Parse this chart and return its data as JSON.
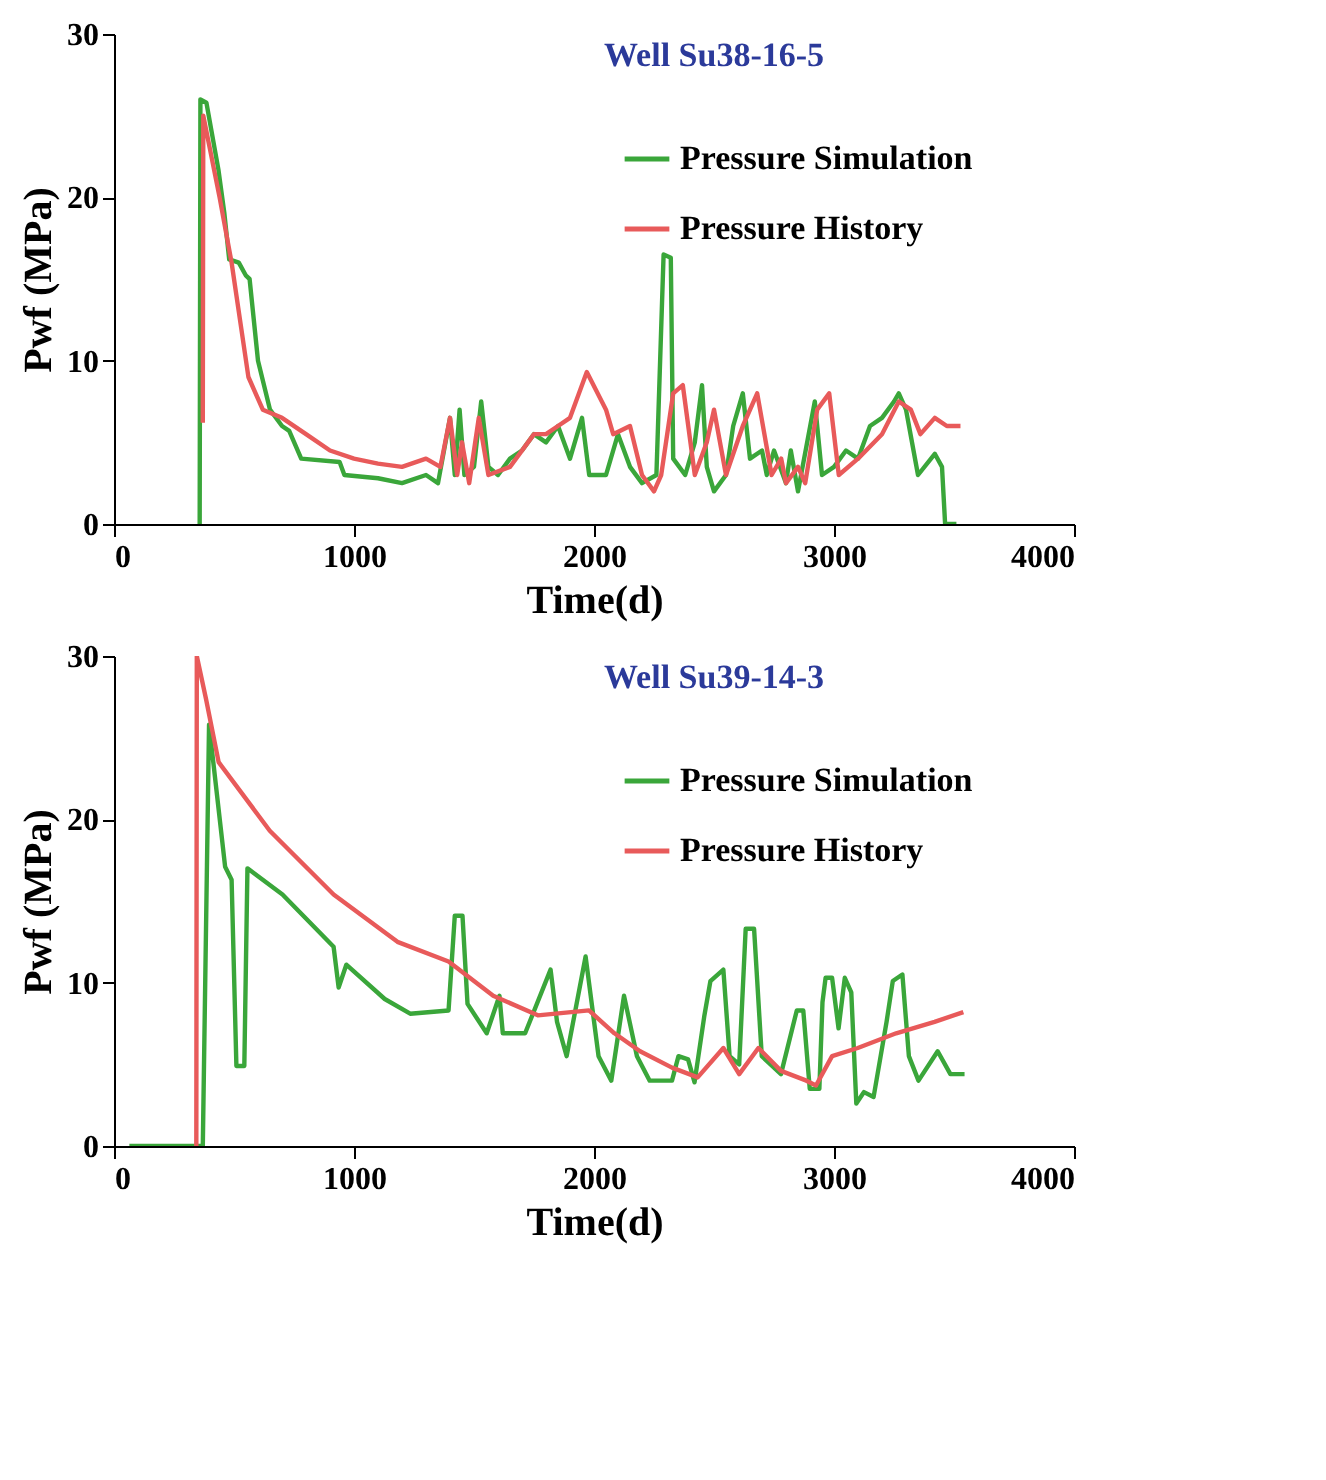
{
  "chart_data": [
    {
      "type": "line",
      "title": "Well Su38-16-5",
      "xlabel": "Time(d)",
      "ylabel": "Pwf (MPa)",
      "xlim": [
        0,
        4000
      ],
      "xticks": [
        0,
        1000,
        2000,
        3000,
        4000
      ],
      "ylim": [
        0,
        30
      ],
      "yticks": [
        0,
        10,
        20,
        30
      ],
      "legend": "top right",
      "grid": false,
      "series": [
        {
          "name": "Pressure Simulation",
          "color": "#3aa63a",
          "x": [
            357,
            360,
            385,
            435,
            460,
            480,
            520,
            550,
            565,
            600,
            650,
            700,
            730,
            780,
            940,
            960,
            1100,
            1200,
            1300,
            1350,
            1400,
            1420,
            1440,
            1460,
            1500,
            1530,
            1560,
            1600,
            1650,
            1700,
            1750,
            1800,
            1850,
            1900,
            1950,
            1980,
            2050,
            2100,
            2150,
            2200,
            2260,
            2290,
            2320,
            2330,
            2380,
            2420,
            2450,
            2470,
            2500,
            2550,
            2580,
            2620,
            2650,
            2700,
            2720,
            2750,
            2800,
            2820,
            2850,
            2920,
            2950,
            3000,
            3050,
            3100,
            3150,
            3200,
            3250,
            3270,
            3300,
            3350,
            3420,
            3450,
            3463,
            3510
          ],
          "values": [
            0,
            26,
            25.8,
            21.7,
            19,
            16.2,
            16,
            15.2,
            15,
            10,
            7,
            6,
            5.7,
            4,
            3.8,
            3,
            2.8,
            2.5,
            3,
            2.5,
            6.5,
            3,
            7,
            3,
            3.5,
            7.5,
            3.5,
            3,
            4,
            4.5,
            5.5,
            5,
            6,
            4,
            6.5,
            3,
            3,
            5.5,
            3.5,
            2.5,
            3,
            16.5,
            16.3,
            4,
            3,
            5,
            8.5,
            3.5,
            2,
            3,
            6,
            8,
            4,
            4.5,
            3,
            4.5,
            2.5,
            4.5,
            2,
            7.5,
            3,
            3.5,
            4.5,
            4,
            6,
            6.5,
            7.5,
            8,
            7,
            3,
            4.3,
            3.5,
            0,
            0
          ]
        },
        {
          "name": "Pressure History",
          "color": "#e85a5a",
          "x": [
            370,
            372,
            440,
            490,
            530,
            560,
            620,
            700,
            800,
            900,
            1000,
            1100,
            1200,
            1300,
            1360,
            1400,
            1430,
            1450,
            1480,
            1520,
            1560,
            1650,
            1750,
            1800,
            1850,
            1900,
            1970,
            2050,
            2080,
            2150,
            2200,
            2250,
            2280,
            2330,
            2370,
            2420,
            2470,
            2500,
            2550,
            2620,
            2680,
            2740,
            2780,
            2800,
            2850,
            2880,
            2930,
            2980,
            3020,
            3100,
            3200,
            3270,
            3320,
            3360,
            3420,
            3470,
            3527
          ],
          "values": [
            6.2,
            25,
            20,
            16,
            12,
            9,
            7,
            6.5,
            5.5,
            4.5,
            4,
            3.7,
            3.5,
            4,
            3.5,
            6.5,
            3,
            5,
            2.5,
            6.5,
            3,
            3.5,
            5.5,
            5.5,
            6,
            6.5,
            9.3,
            7,
            5.5,
            6,
            3,
            2,
            3,
            8,
            8.5,
            3,
            5,
            7,
            3,
            6,
            8,
            3,
            4,
            2.5,
            3.5,
            2.5,
            7,
            8,
            3,
            4,
            5.5,
            7.5,
            7,
            5.5,
            6.5,
            6,
            6
          ]
        }
      ]
    },
    {
      "type": "line",
      "title": "Well Su39-14-3",
      "xlabel": "Time(d)",
      "ylabel": "Pwf (MPa)",
      "xlim": [
        0,
        4000
      ],
      "xticks": [
        0,
        1000,
        2000,
        3000,
        4000
      ],
      "ylim": [
        0,
        30
      ],
      "yticks": [
        0,
        10,
        20,
        30
      ],
      "legend": "top right",
      "grid": false,
      "series": [
        {
          "name": "Pressure Simulation",
          "color": "#3aa63a",
          "x": [
            64,
            370,
            396,
            463,
            490,
            510,
            543,
            556,
            702,
            915,
            936,
            968,
            1128,
            1234,
            1394,
            1420,
            1452,
            1473,
            1553,
            1606,
            1620,
            1713,
            1819,
            1846,
            1886,
            1965,
            2019,
            2072,
            2125,
            2179,
            2232,
            2325,
            2352,
            2392,
            2419,
            2459,
            2485,
            2539,
            2565,
            2605,
            2632,
            2667,
            2699,
            2779,
            2845,
            2872,
            2899,
            2939,
            2952,
            2965,
            2992,
            3019,
            3045,
            3072,
            3093,
            3125,
            3165,
            3219,
            3245,
            3285,
            3312,
            3352,
            3432,
            3485,
            3544
          ],
          "values": [
            0,
            0,
            25.8,
            17.1,
            16.3,
            4.9,
            4.9,
            17,
            15.4,
            12.2,
            9.7,
            11.1,
            9,
            8.1,
            8.3,
            14.1,
            14.1,
            8.7,
            6.9,
            9.2,
            6.9,
            6.9,
            10.8,
            7.6,
            5.5,
            11.6,
            5.5,
            4,
            9.2,
            5.5,
            4,
            4,
            5.5,
            5.3,
            3.9,
            7.9,
            10.1,
            10.8,
            5.5,
            5,
            13.3,
            13.3,
            5.5,
            4.4,
            8.3,
            8.3,
            3.5,
            3.5,
            8.8,
            10.3,
            10.3,
            7.2,
            10.3,
            9.4,
            2.6,
            3.3,
            3,
            7.6,
            10.1,
            10.5,
            5.5,
            4,
            5.8,
            4.4,
            4.4
          ]
        },
        {
          "name": "Pressure History",
          "color": "#e85a5a",
          "x": [
            343,
            345,
            383,
            436,
            649,
            915,
            1181,
            1394,
            1580,
            1766,
            1979,
            2085,
            2192,
            2325,
            2432,
            2539,
            2605,
            2685,
            2779,
            2885,
            2925,
            2992,
            3099,
            3259,
            3419,
            3539
          ],
          "values": [
            0,
            30,
            27.4,
            23.5,
            19.3,
            15.4,
            12.5,
            11.3,
            9.2,
            8,
            8.3,
            6.9,
            5.8,
            4.8,
            4.2,
            6,
            4.4,
            6,
            4.6,
            4,
            3.7,
            5.5,
            6,
            6.9,
            7.6,
            8.2
          ]
        }
      ]
    }
  ]
}
